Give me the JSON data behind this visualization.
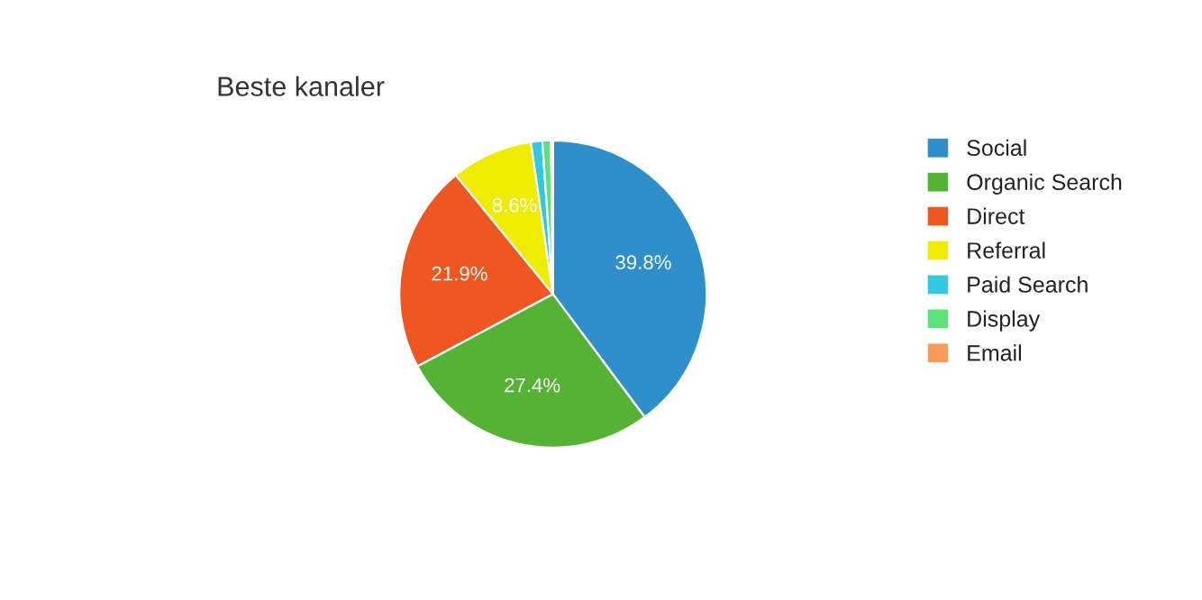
{
  "chart_data": {
    "type": "pie",
    "title": "Beste kanaler",
    "categories": [
      "Social",
      "Organic Search",
      "Direct",
      "Referral",
      "Paid Search",
      "Display",
      "Email"
    ],
    "values": [
      39.8,
      27.4,
      21.9,
      8.6,
      1.2,
      0.9,
      0.2
    ],
    "value_labels": [
      "39.8%",
      "27.4%",
      "21.9%",
      "8.6%",
      null,
      null,
      null
    ],
    "colors": [
      "#2e8fca",
      "#55b235",
      "#ef5722",
      "#f0ec00",
      "#33c8e0",
      "#5ee07a",
      "#f79a5a"
    ],
    "legend": "right"
  }
}
